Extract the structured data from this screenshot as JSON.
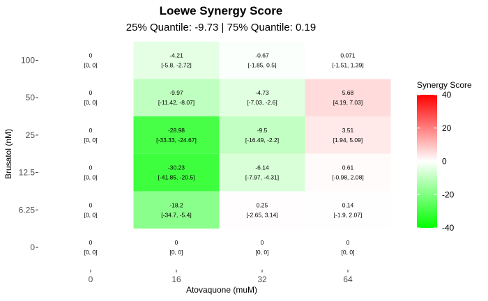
{
  "chart_data": {
    "type": "heatmap",
    "title": "Loewe Synergy Score",
    "subtitle": "25% Quantile: -9.73 | 75% Quantile: 0.19",
    "xlabel": "Atovaquone (muM)",
    "ylabel": "Brusatol (nM)",
    "x_categories": [
      "0",
      "16",
      "32",
      "64"
    ],
    "y_categories": [
      "0",
      "6.25",
      "12.5",
      "25",
      "50",
      "100"
    ],
    "cells": [
      {
        "x": "0",
        "y": "100",
        "value": 0,
        "ci": "[0, 0]"
      },
      {
        "x": "16",
        "y": "100",
        "value": -4.21,
        "ci": "[-5.8, -2.72]"
      },
      {
        "x": "32",
        "y": "100",
        "value": -0.67,
        "ci": "[-1.85, 0.5]"
      },
      {
        "x": "64",
        "y": "100",
        "value": 0.071,
        "ci": "[-1.51, 1.39]"
      },
      {
        "x": "0",
        "y": "50",
        "value": 0,
        "ci": "[0, 0]"
      },
      {
        "x": "16",
        "y": "50",
        "value": -9.97,
        "ci": "[-11.42, -8.07]"
      },
      {
        "x": "32",
        "y": "50",
        "value": -4.73,
        "ci": "[-7.03, -2.6]"
      },
      {
        "x": "64",
        "y": "50",
        "value": 5.68,
        "ci": "[4.19, 7.03]"
      },
      {
        "x": "0",
        "y": "25",
        "value": 0,
        "ci": "[0, 0]"
      },
      {
        "x": "16",
        "y": "25",
        "value": -28.98,
        "ci": "[-33.33, -24.67]"
      },
      {
        "x": "32",
        "y": "25",
        "value": -9.5,
        "ci": "[-16.49, -2.2]"
      },
      {
        "x": "64",
        "y": "25",
        "value": 3.51,
        "ci": "[1.94, 5.09]"
      },
      {
        "x": "0",
        "y": "12.5",
        "value": 0,
        "ci": "[0, 0]"
      },
      {
        "x": "16",
        "y": "12.5",
        "value": -30.23,
        "ci": "[-41.85, -20.5]"
      },
      {
        "x": "32",
        "y": "12.5",
        "value": -6.14,
        "ci": "[-7.97, -4.31]"
      },
      {
        "x": "64",
        "y": "12.5",
        "value": 0.61,
        "ci": "[-0.98, 2.08]"
      },
      {
        "x": "0",
        "y": "6.25",
        "value": 0,
        "ci": "[0, 0]"
      },
      {
        "x": "16",
        "y": "6.25",
        "value": -18.2,
        "ci": "[-34.7, -5.4]"
      },
      {
        "x": "32",
        "y": "6.25",
        "value": 0.25,
        "ci": "[-2.65, 3.14]"
      },
      {
        "x": "64",
        "y": "6.25",
        "value": 0.14,
        "ci": "[-1.9, 2.07]"
      },
      {
        "x": "0",
        "y": "0",
        "value": 0,
        "ci": "[0, 0]"
      },
      {
        "x": "16",
        "y": "0",
        "value": 0,
        "ci": "[0, 0]"
      },
      {
        "x": "32",
        "y": "0",
        "value": 0,
        "ci": "[0, 0]"
      },
      {
        "x": "64",
        "y": "0",
        "value": 0,
        "ci": "[0, 0]"
      }
    ],
    "legend": {
      "title": "Synergy Score",
      "range": [
        -40,
        40
      ],
      "ticks": [
        -40,
        -20,
        0,
        20,
        40
      ],
      "colors": {
        "low": "#00ff00",
        "mid": "#ffffff",
        "high": "#ff0000"
      }
    },
    "grid": false
  }
}
